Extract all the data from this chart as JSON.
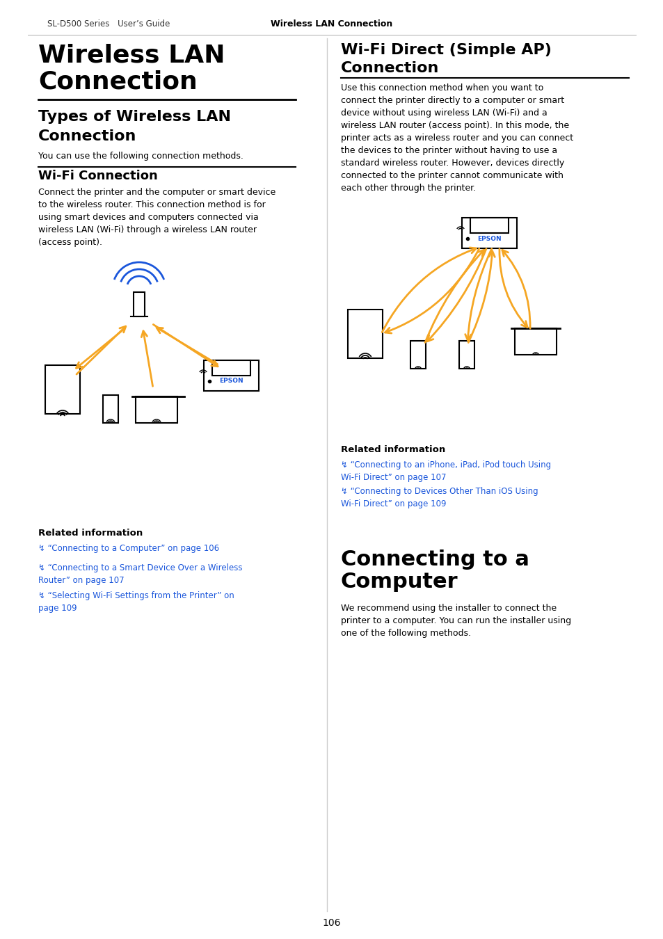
{
  "page_header_left": "SL-D500 Series User’s Guide",
  "page_header_center": "Wireless LAN Connection",
  "page_number": "106",
  "background_color": "#ffffff",
  "text_color": "#000000",
  "link_color": "#1a56db",
  "orange_color": "#f5a623",
  "blue_color": "#1a56db",
  "main_title": "Wireless LAN\nConnection",
  "section1_title": "Types of Wireless LAN\nConnection",
  "section1_body": "You can use the following connection methods.",
  "subsection1_title": "Wi-Fi Connection",
  "subsection1_body": "Connect the printer and the computer or smart device\nto the wireless router. This connection method is for\nusing smart devices and computers connected via\nwireless LAN (Wi-Fi) through a wireless LAN router\n(access point).",
  "related_info_1": "Related information",
  "link1": "↯ “Connecting to a Computer” on page 106",
  "link2": "↯ “Connecting to a Smart Device Over a Wireless\nRouter” on page 107",
  "link3": "↯ “Selecting Wi-Fi Settings from the Printer” on\npage 109",
  "right_section_title": "Wi-Fi Direct (Simple AP)\nConnection",
  "right_section_body": "Use this connection method when you want to\nconnect the printer directly to a computer or smart\ndevice without using wireless LAN (Wi-Fi) and a\nwireless LAN router (access point). In this mode, the\nprinter acts as a wireless router and you can connect\nthe devices to the printer without having to use a\nstandard wireless router. However, devices directly\nconnected to the printer cannot communicate with\neach other through the printer.",
  "related_info_2": "Related information",
  "link4": "↯ “Connecting to an iPhone, iPad, iPod touch Using\nWi-Fi Direct” on page 107",
  "link5": "↯ “Connecting to Devices Other Than iOS Using\nWi-Fi Direct” on page 109",
  "bottom_title": "Connecting to a\nComputer",
  "bottom_body": "We recommend using the installer to connect the\nprinter to a computer. You can run the installer using\none of the following methods."
}
